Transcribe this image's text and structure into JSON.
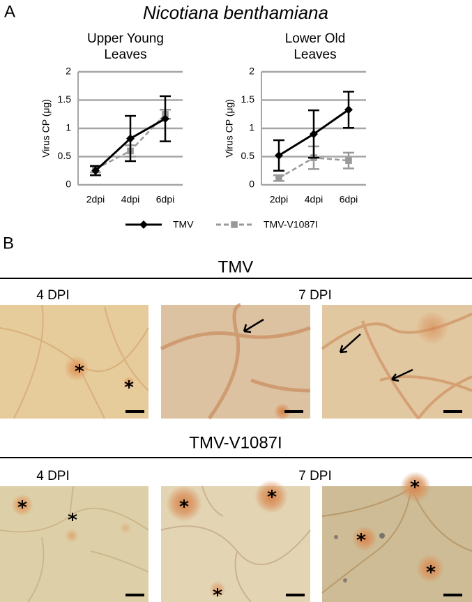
{
  "panel_a": "A",
  "figure_title": "Nicotiana benthamiana",
  "chart_data": [
    {
      "type": "line",
      "title": "Upper Young Leaves",
      "y_label": "Virus CP (μg)",
      "categories": [
        "2dpi",
        "4dpi",
        "6dpi"
      ],
      "series": [
        {
          "name": "TMV",
          "color": "#000000",
          "line_style": "solid",
          "marker": "diamond",
          "values": [
            0.25,
            0.82,
            1.17
          ],
          "errors": [
            0.08,
            0.4,
            0.4
          ]
        },
        {
          "name": "TMV-V1087I",
          "color": "#999999",
          "line_style": "dashed",
          "marker": "square",
          "values": [
            0.28,
            0.6,
            1.25
          ],
          "errors": [
            0.06,
            0.1,
            0.08
          ]
        }
      ],
      "ylim": [
        0,
        2
      ],
      "yticks": [
        0,
        0.5,
        1,
        1.5,
        2
      ],
      "grid": true
    },
    {
      "type": "line",
      "title": "Lower Old Leaves",
      "y_label": "Virus CP (μg)",
      "categories": [
        "2dpi",
        "4dpi",
        "6dpi"
      ],
      "series": [
        {
          "name": "TMV",
          "color": "#000000",
          "line_style": "solid",
          "marker": "diamond",
          "values": [
            0.52,
            0.9,
            1.33
          ],
          "errors": [
            0.27,
            0.42,
            0.32
          ]
        },
        {
          "name": "TMV-V1087I",
          "color": "#999999",
          "line_style": "dashed",
          "marker": "square",
          "values": [
            0.12,
            0.48,
            0.43
          ],
          "errors": [
            0.05,
            0.2,
            0.14
          ]
        }
      ],
      "ylim": [
        0,
        2
      ],
      "yticks": [
        0,
        0.5,
        1,
        1.5,
        2
      ],
      "grid": true
    }
  ],
  "panel_b": "B",
  "sections": [
    {
      "title": "TMV",
      "labels": [
        "4 DPI",
        "7 DPI"
      ]
    },
    {
      "title": "TMV-V1087I",
      "labels": [
        "4 DPI",
        "7 DPI"
      ]
    }
  ]
}
